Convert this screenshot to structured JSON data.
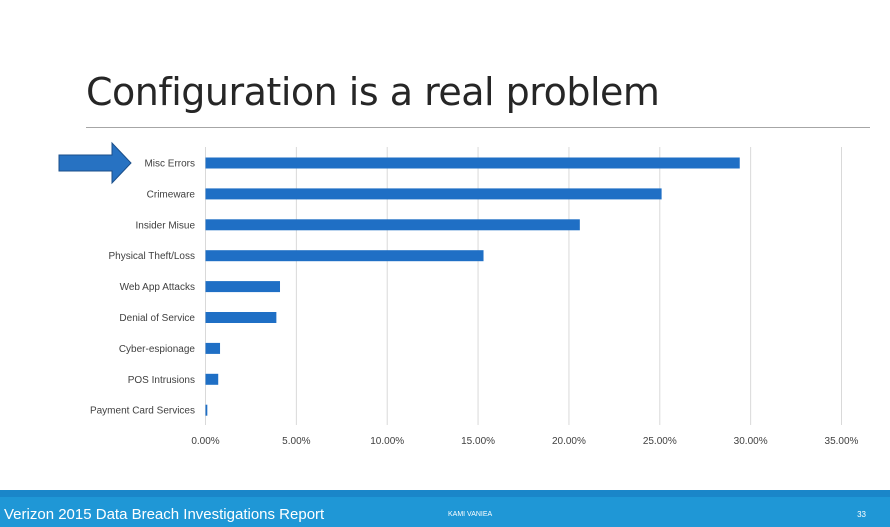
{
  "slide": {
    "title": "Configuration is a real problem"
  },
  "footer": {
    "left": "Verizon 2015 Data Breach Investigations Report",
    "center": "KAMI VANIEA",
    "page": "33"
  },
  "colors": {
    "bar": "#1f6fc5",
    "arrow": "#2772c2",
    "footer": "#1f97d6"
  },
  "arrow": {
    "icon": "right-arrow-icon",
    "points_to": "Misc Errors"
  },
  "chart_data": {
    "type": "bar",
    "orientation": "horizontal",
    "categories": [
      "Misc Errors",
      "Crimeware",
      "Insider Misue",
      "Physical Theft/Loss",
      "Web App Attacks",
      "Denial of Service",
      "Cyber-espionage",
      "POS Intrusions",
      "Payment Card Services"
    ],
    "values": [
      29.4,
      25.1,
      20.6,
      15.3,
      4.1,
      3.9,
      0.8,
      0.7,
      0.1
    ],
    "xlim": [
      0,
      35
    ],
    "xticks": [
      0,
      5,
      10,
      15,
      20,
      25,
      30,
      35
    ],
    "xtick_labels": [
      "0.00%",
      "5.00%",
      "10.00%",
      "15.00%",
      "20.00%",
      "25.00%",
      "30.00%",
      "35.00%"
    ],
    "grid": "vertical",
    "title": "",
    "xlabel": "",
    "ylabel": ""
  }
}
